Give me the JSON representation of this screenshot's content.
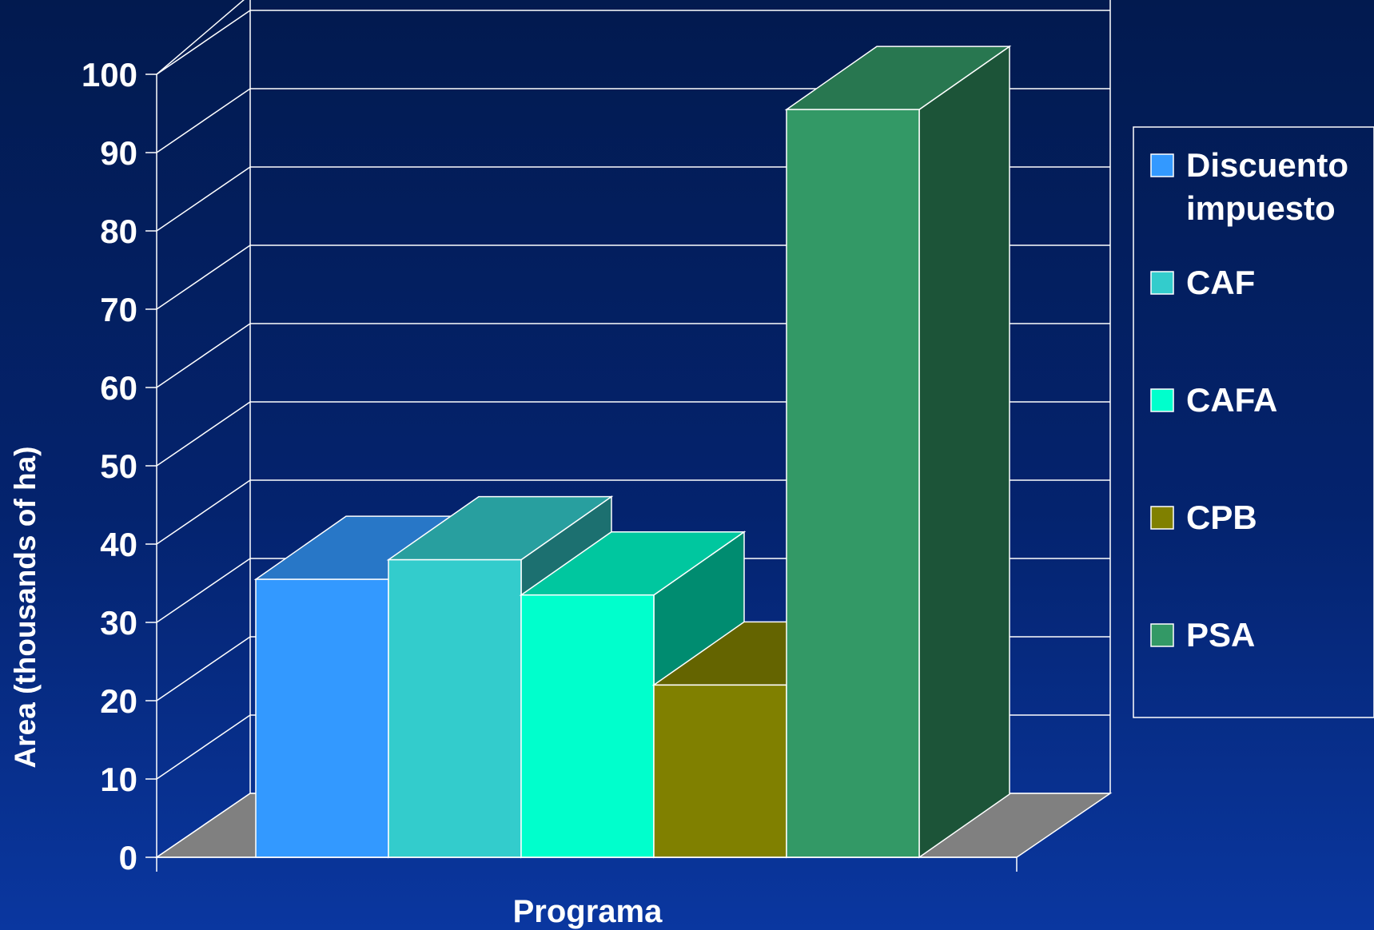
{
  "chart_data": {
    "type": "bar",
    "style": "3d-clustered",
    "title": "",
    "xlabel": "Programa",
    "ylabel": "Area (thousands of ha)",
    "ylim": [
      0,
      100
    ],
    "yticks": [
      0,
      10,
      20,
      30,
      40,
      50,
      60,
      70,
      80,
      90,
      100
    ],
    "grid": true,
    "legend_position": "right",
    "floor_color": "#808080",
    "series": [
      {
        "name": "Discuento impuesto",
        "legend_lines": [
          "Discuento",
          "impuesto"
        ],
        "value": 35.5,
        "color": "#3399ff"
      },
      {
        "name": "CAF",
        "legend_lines": [
          "CAF"
        ],
        "value": 38,
        "color": "#33cccc"
      },
      {
        "name": "CAFA",
        "legend_lines": [
          "CAFA"
        ],
        "value": 33.5,
        "color": "#00ffcc"
      },
      {
        "name": "CPB",
        "legend_lines": [
          "CPB"
        ],
        "value": 22,
        "color": "#808000"
      },
      {
        "name": "PSA",
        "legend_lines": [
          "PSA"
        ],
        "value": 95.5,
        "color": "#339966"
      }
    ]
  }
}
